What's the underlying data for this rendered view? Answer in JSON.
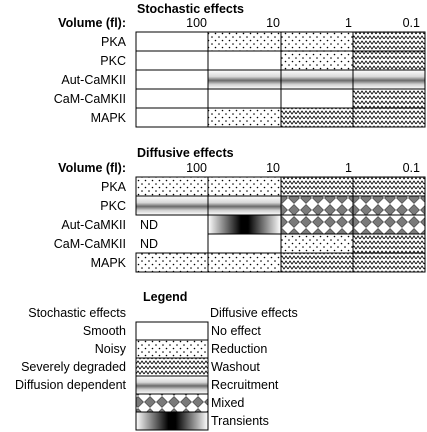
{
  "stochastic": {
    "title": "Stochastic effects",
    "volume_label": "Volume (fl):",
    "ticks": [
      "100",
      "10",
      "1",
      "0.1"
    ],
    "rows": [
      {
        "label": "PKA",
        "cells": [
          "none",
          "dots",
          "dots",
          "zigzag"
        ]
      },
      {
        "label": "PKC",
        "cells": [
          "none",
          "none",
          "dots",
          "zigzag"
        ]
      },
      {
        "label": "Aut-CaMKII",
        "cells": [
          "none",
          "gradient",
          "gradient",
          "gradient"
        ]
      },
      {
        "label": "CaM-CaMKII",
        "cells": [
          "none",
          "none",
          "none",
          "zigzag"
        ]
      },
      {
        "label": "MAPK",
        "cells": [
          "none",
          "dots",
          "zigzag",
          "zigzag"
        ]
      }
    ]
  },
  "diffusive": {
    "title": "Diffusive effects",
    "volume_label": "Volume (fl):",
    "ticks": [
      "100",
      "10",
      "1",
      "0.1"
    ],
    "rows": [
      {
        "label": "PKA",
        "nd": "",
        "cells": [
          "dots",
          "dots",
          "zigzag",
          "zigzag"
        ]
      },
      {
        "label": "PKC",
        "nd": "",
        "cells": [
          "gradient",
          "gradient",
          "diamond",
          "diamond"
        ]
      },
      {
        "label": "Aut-CaMKII",
        "nd": "ND",
        "cells": [
          "blank",
          "transient",
          "diamond",
          "diamond"
        ]
      },
      {
        "label": "CaM-CaMKII",
        "nd": "ND",
        "cells": [
          "blank",
          "none",
          "dots",
          "zigzag"
        ]
      },
      {
        "label": "MAPK",
        "nd": "",
        "cells": [
          "dots",
          "dots",
          "zigzag",
          "zigzag"
        ]
      }
    ]
  },
  "legend": {
    "title": "Legend",
    "stochastic_header": "Stochastic effects",
    "diffusive_header": "Diffusive effects",
    "items": [
      {
        "stochastic": "Smooth",
        "diffusive": "No effect",
        "pattern": "none"
      },
      {
        "stochastic": "Noisy",
        "diffusive": "Reduction",
        "pattern": "dots"
      },
      {
        "stochastic": "Severely degraded",
        "diffusive": "Washout",
        "pattern": "zigzag"
      },
      {
        "stochastic": "Diffusion dependent",
        "diffusive": "Recruitment",
        "pattern": "gradient"
      },
      {
        "stochastic": "",
        "diffusive": "Mixed",
        "pattern": "diamond"
      },
      {
        "stochastic": "",
        "diffusive": "Transients",
        "pattern": "transient"
      }
    ]
  }
}
